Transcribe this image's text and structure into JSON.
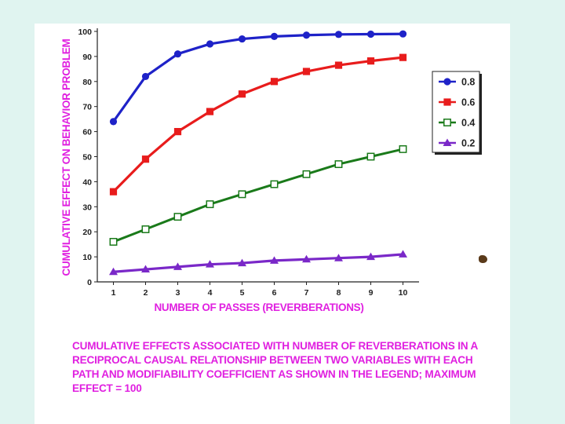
{
  "chart_data": {
    "type": "line",
    "x": [
      1,
      2,
      3,
      4,
      5,
      6,
      7,
      8,
      9,
      10
    ],
    "series": [
      {
        "name": "0.8",
        "color": "#1e22c8",
        "marker": "circle",
        "values": [
          64,
          82,
          91,
          95,
          97,
          98,
          98.5,
          98.8,
          98.9,
          99
        ]
      },
      {
        "name": "0.6",
        "color": "#e81c1c",
        "marker": "square",
        "values": [
          36,
          49,
          60,
          68,
          75,
          80,
          84,
          86.5,
          88.2,
          89.6
        ]
      },
      {
        "name": "0.4",
        "color": "#1a7a1a",
        "marker": "open-square",
        "values": [
          16,
          21,
          26,
          31,
          35,
          39,
          43,
          47,
          50,
          53
        ]
      },
      {
        "name": "0.2",
        "color": "#7a28c8",
        "marker": "triangle",
        "values": [
          4,
          5,
          6,
          7,
          7.5,
          8.5,
          9,
          9.5,
          10,
          11
        ]
      }
    ],
    "ylim": [
      0,
      100
    ],
    "yticks": [
      0,
      10,
      20,
      30,
      40,
      50,
      60,
      70,
      80,
      90,
      100
    ],
    "xticks": [
      1,
      2,
      3,
      4,
      5,
      6,
      7,
      8,
      9,
      10
    ],
    "xlabel": "NUMBER OF PASSES (REVERBERATIONS)",
    "ylabel": "CUMULATIVE EFFECT ON BEHAVIOR PROBLEM",
    "legend_position": "right",
    "label_color": "#e020e0"
  },
  "caption": "CUMULATIVE EFFECTS ASSOCIATED WITH NUMBER OF REVERBERATIONS IN A RECIPROCAL CAUSAL RELATIONSHIP BETWEEN TWO VARIABLES WITH EACH PATH AND MODIFIABILITY COEFFICIENT AS SHOWN IN THE LEGEND; MAXIMUM EFFECT = 100"
}
